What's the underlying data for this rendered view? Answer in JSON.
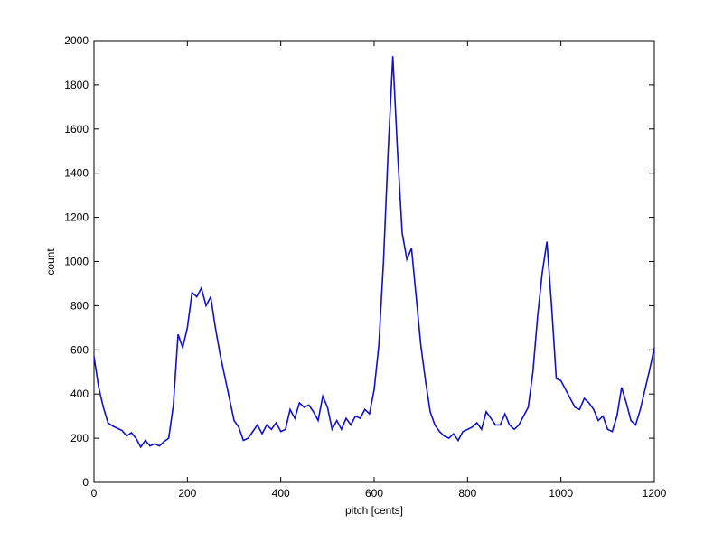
{
  "chart_data": {
    "type": "line",
    "xlabel": "pitch [cents]",
    "ylabel": "count",
    "x": [
      0,
      10,
      20,
      30,
      40,
      50,
      60,
      70,
      80,
      90,
      100,
      110,
      120,
      130,
      140,
      150,
      160,
      170,
      180,
      190,
      200,
      210,
      220,
      230,
      240,
      250,
      260,
      270,
      280,
      290,
      300,
      310,
      320,
      330,
      340,
      350,
      360,
      370,
      380,
      390,
      400,
      410,
      420,
      430,
      440,
      450,
      460,
      470,
      480,
      490,
      500,
      510,
      520,
      530,
      540,
      550,
      560,
      570,
      580,
      590,
      600,
      610,
      620,
      630,
      640,
      650,
      660,
      670,
      680,
      690,
      700,
      710,
      720,
      730,
      740,
      750,
      760,
      770,
      780,
      790,
      800,
      810,
      820,
      830,
      840,
      850,
      860,
      870,
      880,
      890,
      900,
      910,
      920,
      930,
      940,
      950,
      960,
      970,
      980,
      990,
      1000,
      1010,
      1020,
      1030,
      1040,
      1050,
      1060,
      1070,
      1080,
      1090,
      1100,
      1110,
      1120,
      1130,
      1140,
      1150,
      1160,
      1170,
      1180,
      1190,
      1200
    ],
    "series": [
      {
        "name": "count",
        "color": "#1010d0",
        "values": [
          570,
          430,
          340,
          270,
          255,
          245,
          235,
          210,
          225,
          200,
          160,
          190,
          165,
          175,
          165,
          185,
          200,
          350,
          670,
          610,
          700,
          860,
          840,
          880,
          800,
          840,
          700,
          580,
          480,
          380,
          280,
          250,
          190,
          200,
          230,
          260,
          220,
          260,
          240,
          270,
          230,
          240,
          330,
          290,
          360,
          340,
          350,
          320,
          280,
          390,
          340,
          240,
          280,
          240,
          290,
          260,
          300,
          290,
          330,
          310,
          420,
          620,
          1000,
          1500,
          1930,
          1500,
          1130,
          1010,
          1060,
          840,
          620,
          460,
          320,
          260,
          230,
          210,
          200,
          220,
          190,
          230,
          240,
          250,
          270,
          240,
          320,
          290,
          260,
          260,
          310,
          260,
          240,
          260,
          300,
          340,
          500,
          750,
          950,
          1090,
          800,
          470,
          460,
          420,
          380,
          340,
          330,
          380,
          360,
          330,
          280,
          300,
          240,
          230,
          300,
          430,
          360,
          280,
          260,
          330,
          420,
          510,
          610
        ]
      }
    ],
    "xlim": [
      0,
      1200
    ],
    "xticks": [
      0,
      200,
      400,
      600,
      800,
      1000,
      1200
    ],
    "ylim": [
      0,
      2000
    ],
    "yticks": [
      0,
      200,
      400,
      600,
      800,
      1000,
      1200,
      1400,
      1600,
      1800,
      2000
    ],
    "grid": false
  }
}
